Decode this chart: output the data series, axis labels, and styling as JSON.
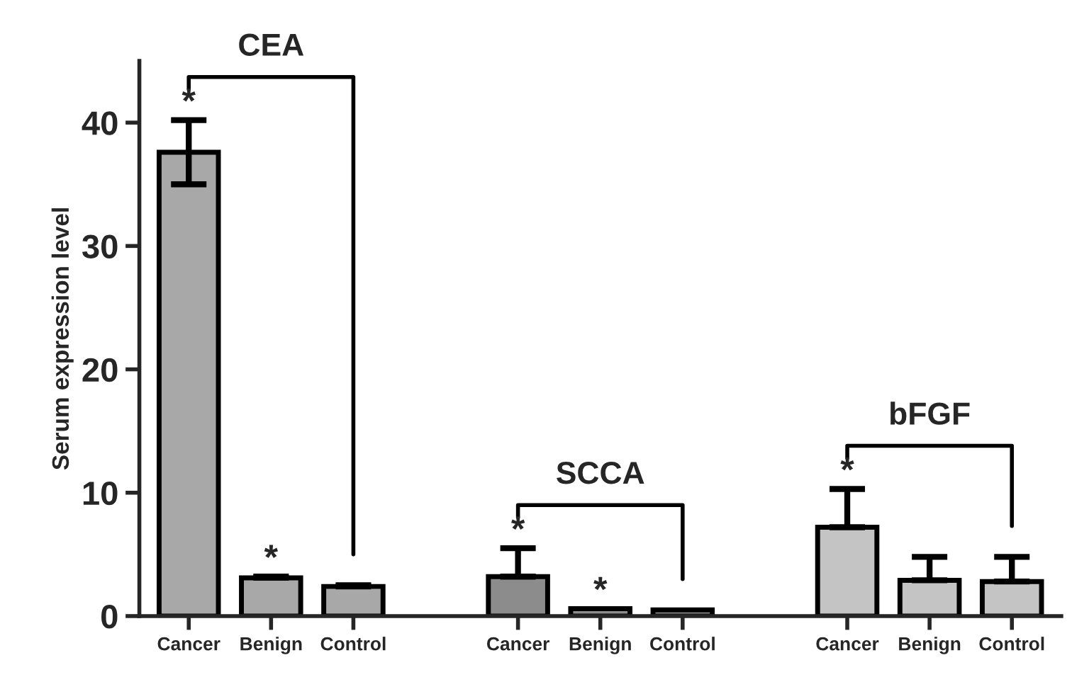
{
  "chart_data": {
    "type": "bar",
    "ylabel": "Serum expression level",
    "categories": [
      "Cancer",
      "Benign",
      "Control",
      null,
      "Cancer",
      "Benign",
      "Control",
      null,
      "Cancer",
      "Benign",
      "Control"
    ],
    "values": [
      37.6,
      3.1,
      2.4,
      null,
      3.2,
      0.6,
      0.5,
      null,
      7.2,
      2.9,
      2.8
    ],
    "errors": [
      [
        35,
        40.2
      ],
      [
        3.1,
        3.2
      ],
      [
        2.4,
        2.5
      ],
      null,
      [
        3.2,
        5.5
      ],
      null,
      null,
      null,
      [
        7.2,
        10.3
      ],
      [
        2.9,
        4.8
      ],
      [
        2.8,
        4.8
      ]
    ],
    "colors": [
      "#a8a8a8",
      "#a8a8a8",
      "#a8a8a8",
      null,
      "#8c8c8c",
      "#8c8c8c",
      "#8c8c8c",
      null,
      "#c4c4c4",
      "#c4c4c4",
      "#c4c4c4"
    ],
    "value_labels": [
      "*",
      "*",
      null,
      null,
      "*",
      "*",
      null,
      null,
      "*",
      null,
      null
    ],
    "annotations": [
      "CEA",
      "SCCA",
      "bFGF"
    ],
    "ylim": [
      0,
      45
    ],
    "yticks": [
      0,
      10,
      20,
      30,
      40
    ],
    "grid": false,
    "legend": false
  }
}
